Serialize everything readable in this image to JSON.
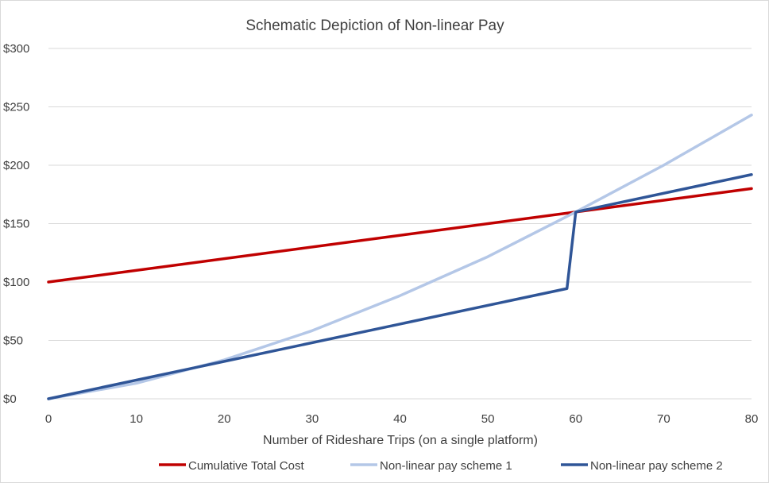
{
  "chart_data": {
    "type": "line",
    "title": "Schematic Depiction of Non-linear Pay",
    "xlabel": "Number of Rideshare Trips (on a single platform)",
    "ylabel": "",
    "xlim": [
      0,
      80
    ],
    "ylim": [
      0,
      300
    ],
    "x_ticks": [
      "0",
      "10",
      "20",
      "30",
      "40",
      "50",
      "60",
      "70",
      "80"
    ],
    "y_ticks": [
      "$0",
      "$50",
      "$100",
      "$150",
      "$200",
      "$250",
      "$300"
    ],
    "grid": "horizontal",
    "legend_position": "bottom",
    "series": [
      {
        "name": "Cumulative Total Cost",
        "color": "#c00000",
        "x": [
          0,
          80
        ],
        "y": [
          100,
          180
        ]
      },
      {
        "name": "Non-linear pay scheme 1",
        "color": "#b4c7e7",
        "x": [
          0,
          10,
          20,
          30,
          40,
          50,
          60,
          70,
          80
        ],
        "y": [
          0,
          13.3,
          33.3,
          58.3,
          88.3,
          121.7,
          160,
          200,
          243
        ]
      },
      {
        "name": "Non-linear pay scheme 2",
        "color": "#2f5597",
        "x": [
          0,
          59,
          60,
          80
        ],
        "y": [
          0,
          94.4,
          160,
          192
        ]
      }
    ]
  }
}
